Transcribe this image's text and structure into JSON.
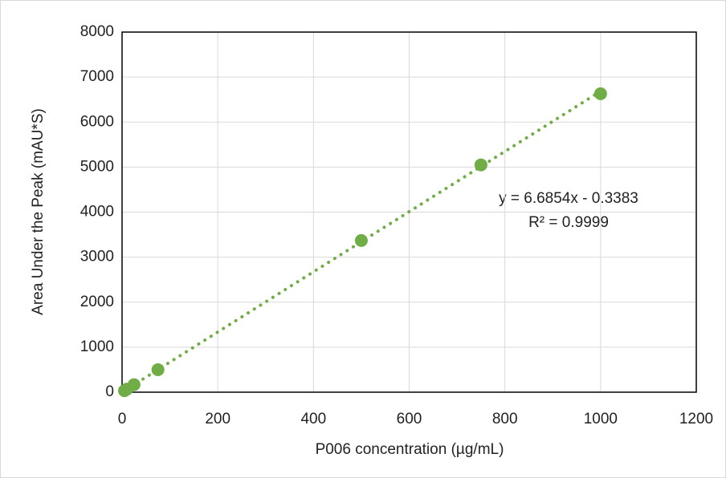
{
  "chart_data": {
    "type": "scatter",
    "x_label": "P006 concentration (µg/mL)",
    "y_label": "Area Under the Peak (mAU*S)",
    "series": [
      {
        "color": "#70ad47",
        "x": [
          5,
          10,
          25,
          75,
          500,
          750,
          1000
        ],
        "values": [
          33,
          67,
          167,
          500,
          3370,
          5050,
          6630
        ]
      }
    ],
    "trendline": {
      "equation": "y = 6.6854x - 0.3383",
      "r_squared": "R² = 0.9999",
      "color": "#70ad47",
      "x": [
        5,
        1000
      ],
      "values": [
        33,
        6685
      ]
    },
    "xlim": [
      0,
      1200
    ],
    "xticks": [
      0,
      200,
      400,
      600,
      800,
      1000,
      1200
    ],
    "ylim": [
      0,
      8000
    ],
    "yticks": [
      0,
      1000,
      2000,
      3000,
      4000,
      5000,
      6000,
      7000,
      8000
    ],
    "grid": true
  }
}
